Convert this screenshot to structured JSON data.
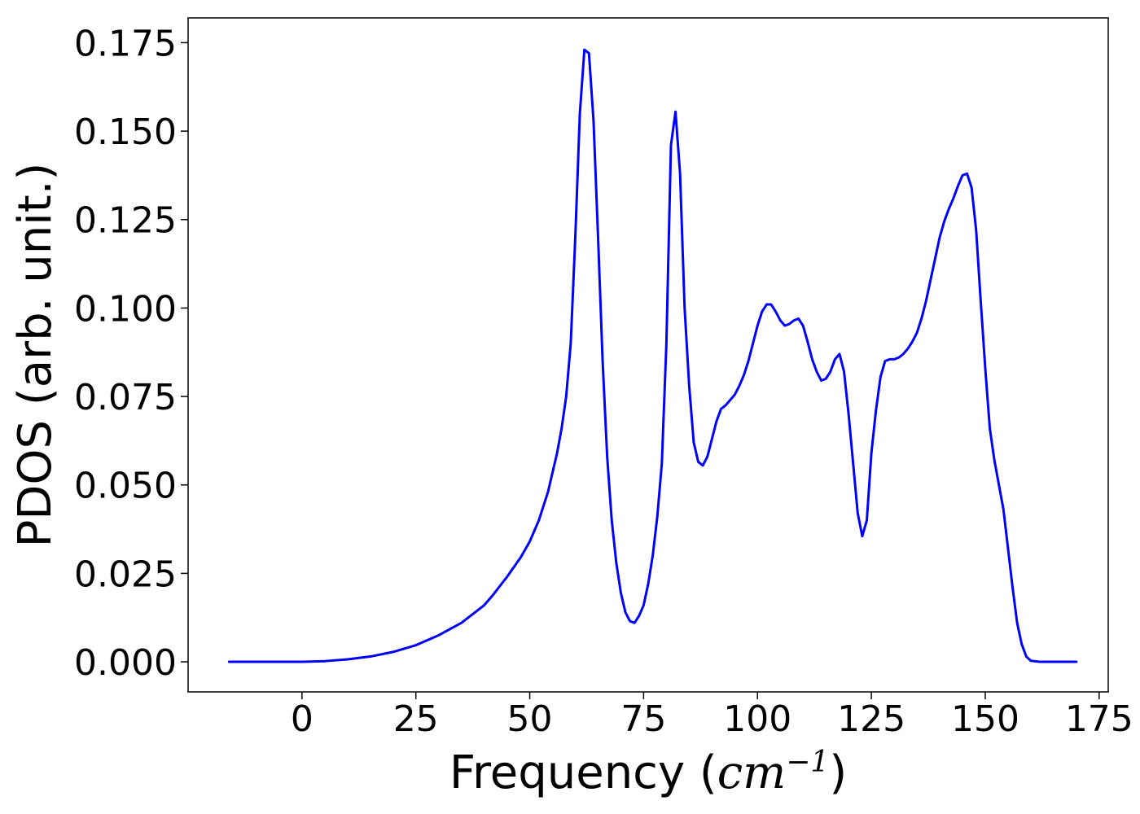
{
  "chart_data": {
    "type": "line",
    "title": "",
    "xlabel": "Frequency",
    "xlabel_unit": "cm",
    "xlabel_unit_exponent": "−1",
    "ylabel": "PDOS (arb. unit.)",
    "xlim": [
      -25,
      177
    ],
    "ylim": [
      -0.0085,
      0.182
    ],
    "x_ticks": [
      0,
      25,
      50,
      75,
      100,
      125,
      150,
      175
    ],
    "x_tick_labels": [
      "0",
      "25",
      "50",
      "75",
      "100",
      "125",
      "150",
      "175"
    ],
    "y_ticks": [
      0.0,
      0.025,
      0.05,
      0.075,
      0.1,
      0.125,
      0.15,
      0.175
    ],
    "y_tick_labels": [
      "0.000",
      "0.025",
      "0.050",
      "0.075",
      "0.100",
      "0.125",
      "0.150",
      "0.175"
    ],
    "grid": false,
    "legend": "none",
    "series": [
      {
        "color": "#0000ff",
        "x": [
          -16,
          -5,
          0,
          5,
          10,
          15,
          20,
          25,
          30,
          35,
          40,
          42,
          45,
          48,
          50,
          52,
          54,
          56,
          57,
          58,
          59,
          60,
          61,
          62,
          63,
          64,
          65,
          66,
          67,
          68,
          69,
          70,
          71,
          72,
          73,
          74,
          75,
          76,
          77,
          78,
          79,
          80,
          81,
          82,
          83,
          84,
          85,
          86,
          87,
          88,
          89,
          90,
          91,
          92,
          93,
          94,
          95,
          96,
          97,
          98,
          99,
          100,
          101,
          102,
          103,
          104,
          105,
          106,
          107,
          108,
          109,
          110,
          111,
          112,
          113,
          114,
          115,
          116,
          117,
          118,
          119,
          120,
          121,
          122,
          123,
          124,
          125,
          126,
          127,
          128,
          129,
          130,
          131,
          132,
          133,
          134,
          135,
          136,
          137,
          138,
          139,
          140,
          141,
          142,
          143,
          144,
          145,
          146,
          147,
          148,
          149,
          150,
          151,
          152,
          153,
          154,
          155,
          156,
          157,
          158,
          159,
          160,
          162,
          165,
          170
        ],
        "y": [
          0.0,
          0.0,
          0.0,
          0.0002,
          0.0007,
          0.0015,
          0.0028,
          0.0047,
          0.0075,
          0.011,
          0.016,
          0.019,
          0.024,
          0.0295,
          0.034,
          0.04,
          0.048,
          0.059,
          0.066,
          0.075,
          0.09,
          0.12,
          0.155,
          0.173,
          0.172,
          0.153,
          0.12,
          0.085,
          0.058,
          0.04,
          0.028,
          0.0195,
          0.014,
          0.0115,
          0.011,
          0.013,
          0.016,
          0.022,
          0.03,
          0.041,
          0.056,
          0.09,
          0.146,
          0.1555,
          0.138,
          0.1,
          0.078,
          0.062,
          0.0565,
          0.0555,
          0.058,
          0.063,
          0.068,
          0.0715,
          0.0725,
          0.074,
          0.0755,
          0.078,
          0.081,
          0.085,
          0.09,
          0.095,
          0.099,
          0.101,
          0.101,
          0.099,
          0.0965,
          0.095,
          0.0955,
          0.0965,
          0.097,
          0.095,
          0.0905,
          0.0855,
          0.082,
          0.0795,
          0.08,
          0.082,
          0.0855,
          0.087,
          0.082,
          0.07,
          0.056,
          0.042,
          0.0355,
          0.04,
          0.059,
          0.071,
          0.0805,
          0.085,
          0.0855,
          0.0855,
          0.086,
          0.087,
          0.0885,
          0.0905,
          0.093,
          0.097,
          0.102,
          0.108,
          0.114,
          0.12,
          0.1245,
          0.128,
          0.131,
          0.1345,
          0.1375,
          0.138,
          0.134,
          0.122,
          0.102,
          0.083,
          0.066,
          0.057,
          0.05,
          0.043,
          0.032,
          0.021,
          0.011,
          0.005,
          0.0015,
          0.0003,
          0.0,
          0.0,
          0.0
        ]
      }
    ]
  }
}
